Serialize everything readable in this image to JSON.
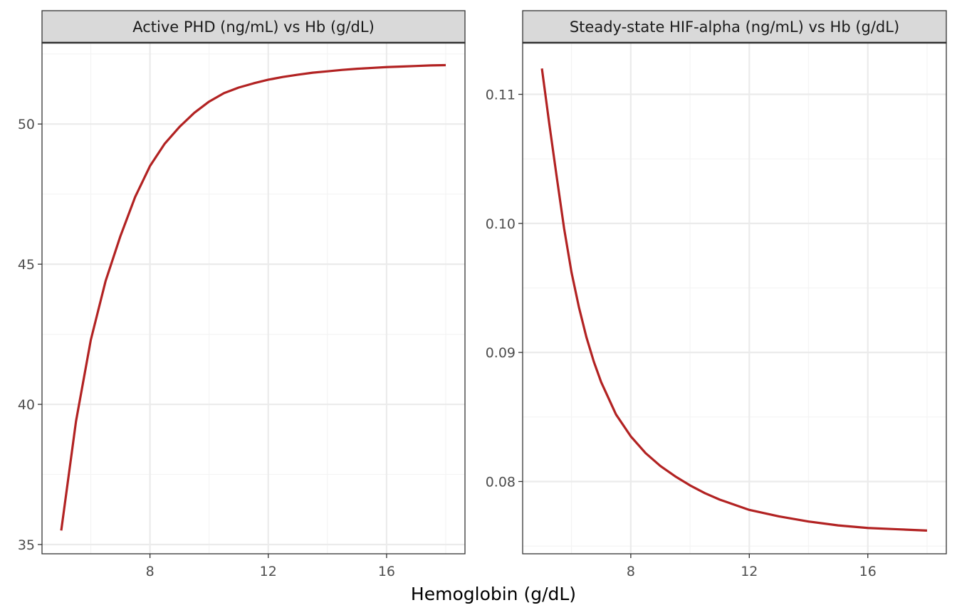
{
  "x_axis_title": "Hemoglobin (g/dL)",
  "colors": {
    "line": "#b22222",
    "strip_fill": "#d9d9d9",
    "panel_border": "#333333",
    "grid_major": "#ebebeb",
    "grid_minor": "#f4f4f4"
  },
  "chart_data": [
    {
      "type": "line",
      "title": "Active PHD (ng/mL) vs Hb (g/dL)",
      "xlabel": "Hemoglobin (g/dL)",
      "ylabel": "",
      "xlim": [
        4.35,
        18.65
      ],
      "ylim": [
        34.67,
        52.9
      ],
      "x_ticks": [
        8,
        12,
        16
      ],
      "x_tick_labels": [
        "8",
        "12",
        "16"
      ],
      "y_ticks": [
        35,
        40,
        45,
        50
      ],
      "y_tick_labels": [
        "35",
        "40",
        "45",
        "50"
      ],
      "grid": true,
      "series": [
        {
          "x": [
            5,
            5.5,
            6,
            6.5,
            7,
            7.5,
            8,
            8.5,
            9,
            9.5,
            10,
            10.5,
            11,
            11.5,
            12,
            12.5,
            13,
            13.5,
            14,
            14.5,
            15,
            15.5,
            16,
            16.5,
            17,
            17.5,
            18
          ],
          "values": [
            35.5,
            39.4,
            42.3,
            44.4,
            46.0,
            47.4,
            48.5,
            49.3,
            49.9,
            50.4,
            50.8,
            51.1,
            51.3,
            51.45,
            51.58,
            51.68,
            51.76,
            51.83,
            51.88,
            51.93,
            51.97,
            52.0,
            52.03,
            52.05,
            52.07,
            52.09,
            52.1
          ]
        }
      ]
    },
    {
      "type": "line",
      "title": "Steady-state HIF-alpha (ng/mL) vs Hb (g/dL)",
      "xlabel": "Hemoglobin (g/dL)",
      "ylabel": "",
      "xlim": [
        4.35,
        18.65
      ],
      "ylim": [
        0.0744,
        0.114
      ],
      "x_ticks": [
        8,
        12,
        16
      ],
      "x_tick_labels": [
        "8",
        "12",
        "16"
      ],
      "y_ticks": [
        0.08,
        0.09,
        0.1,
        0.11
      ],
      "y_tick_labels": [
        "0.08",
        "0.09",
        "0.10",
        "0.11"
      ],
      "grid": true,
      "series": [
        {
          "x": [
            5,
            5.25,
            5.5,
            5.75,
            6,
            6.25,
            6.5,
            6.75,
            7,
            7.5,
            8,
            8.5,
            9,
            9.5,
            10,
            10.5,
            11,
            11.5,
            12,
            13,
            14,
            15,
            16,
            17,
            18
          ],
          "values": [
            0.112,
            0.1077,
            0.1036,
            0.0996,
            0.0962,
            0.0935,
            0.0912,
            0.0893,
            0.0877,
            0.0852,
            0.0835,
            0.0822,
            0.0812,
            0.0804,
            0.0797,
            0.0791,
            0.0786,
            0.0782,
            0.0778,
            0.0773,
            0.0769,
            0.0766,
            0.0764,
            0.0763,
            0.0762
          ]
        }
      ]
    }
  ]
}
